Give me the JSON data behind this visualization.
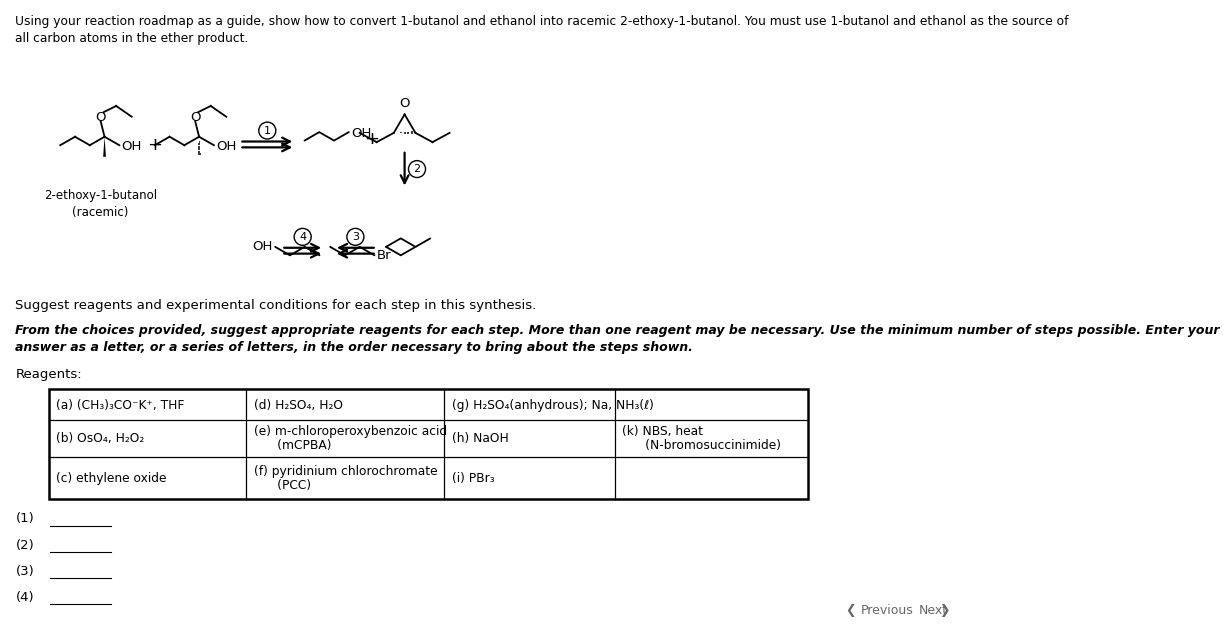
{
  "title_line1": "Using your reaction roadmap as a guide, show how to convert 1-butanol and ethanol into racemic 2-ethoxy-1-butanol. You must use 1-butanol and ethanol as the source of",
  "title_line2": "all carbon atoms in the ether product.",
  "label_2ethoxy": "2-ethoxy-1-butanol",
  "label_racemic": "(racemic)",
  "suggest_text": "Suggest reagents and experimental conditions for each step in this synthesis.",
  "italic_line1": "From the choices provided, suggest appropriate reagents for each step. More than one reagent may be necessary. Use the minimum number of steps possible. Enter your",
  "italic_line2": "answer as a letter, or a series of letters, in the order necessary to bring about the steps shown.",
  "reagents_label": "Reagents:",
  "col0_r1": "(a) (CH₃)₃CO⁻K⁺, THF",
  "col1_r1": "(d) H₂SO₄, H₂O",
  "col2_r1": "(g) H₂SO₄(anhydrous); Na, NH₃(ℓ)",
  "col0_r2": "(b) OsO₄, H₂O₂",
  "col1_r2a": "(e) m-chloroperoxybenzoic acid",
  "col1_r2b": "      (mCPBA)",
  "col2_r2": "(h) NaOH",
  "col3_r2a": "(k) NBS, heat",
  "col3_r2b": "      (N-bromosuccinimide)",
  "col0_r3": "(c) ethylene oxide",
  "col1_r3a": "(f) pyridinium chlorochromate",
  "col1_r3b": "      (PCC)",
  "col2_r3": "(i) PBr₃",
  "ans_labels": [
    "(1)",
    "(2)",
    "(3)",
    "(4)"
  ],
  "prev_text": "Previous",
  "next_text": "Next",
  "bg": "#ffffff",
  "black": "#000000",
  "gray": "#666666"
}
